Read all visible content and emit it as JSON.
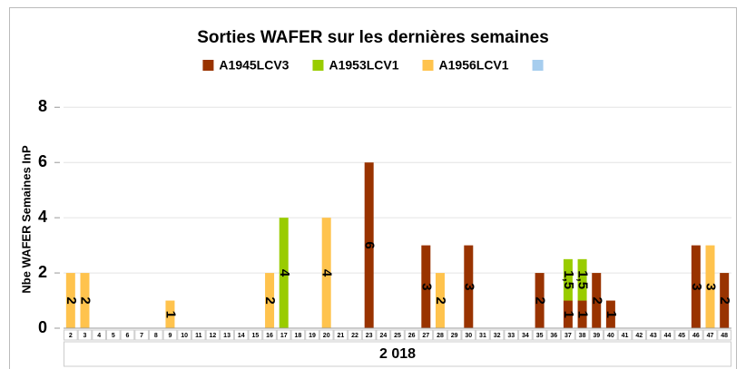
{
  "chart_data": {
    "type": "bar",
    "stacked": true,
    "title": "Sorties WAFER sur les dernières semaines",
    "ylabel": "Nbe WAFER Semaines InP",
    "category_group": "2 018",
    "categories": [
      "2",
      "3",
      "4",
      "5",
      "6",
      "7",
      "8",
      "9",
      "10",
      "11",
      "12",
      "13",
      "14",
      "15",
      "16",
      "17",
      "18",
      "19",
      "20",
      "21",
      "22",
      "23",
      "24",
      "25",
      "26",
      "27",
      "28",
      "29",
      "30",
      "31",
      "32",
      "33",
      "34",
      "35",
      "36",
      "37",
      "38",
      "39",
      "40",
      "41",
      "42",
      "43",
      "44",
      "45",
      "46",
      "47",
      "48"
    ],
    "ylim": [
      0,
      8.6
    ],
    "yticks": [
      0,
      2,
      4,
      6,
      8
    ],
    "grid": true,
    "legend": "top",
    "series": [
      {
        "name": "A1945LCV3",
        "color": "#993300",
        "values": [
          null,
          null,
          null,
          null,
          null,
          null,
          null,
          null,
          null,
          null,
          null,
          null,
          null,
          null,
          null,
          null,
          null,
          null,
          null,
          null,
          null,
          6,
          null,
          null,
          null,
          3,
          null,
          null,
          3,
          null,
          null,
          null,
          null,
          2,
          null,
          1,
          1,
          2,
          1,
          null,
          null,
          null,
          null,
          null,
          3,
          null,
          2
        ]
      },
      {
        "name": "A1953LCV1",
        "color": "#99cc00",
        "values": [
          null,
          null,
          null,
          null,
          null,
          null,
          null,
          null,
          null,
          null,
          null,
          null,
          null,
          null,
          null,
          4,
          null,
          null,
          null,
          null,
          null,
          null,
          null,
          null,
          null,
          null,
          null,
          null,
          null,
          null,
          null,
          null,
          null,
          null,
          null,
          1.5,
          1.5,
          null,
          null,
          null,
          null,
          null,
          null,
          null,
          null,
          null,
          null
        ],
        "value_labels": [
          null,
          null,
          null,
          null,
          null,
          null,
          null,
          null,
          null,
          null,
          null,
          null,
          null,
          null,
          null,
          "4",
          null,
          null,
          null,
          null,
          null,
          null,
          null,
          null,
          null,
          null,
          null,
          null,
          null,
          null,
          null,
          null,
          null,
          null,
          null,
          "1,5",
          "1,5",
          null,
          null,
          null,
          null,
          null,
          null,
          null,
          null,
          null,
          null
        ]
      },
      {
        "name": "A1956LCV1",
        "color": "#ffc34d",
        "values": [
          2,
          2,
          null,
          null,
          null,
          null,
          null,
          1,
          null,
          null,
          null,
          null,
          null,
          null,
          2,
          null,
          null,
          null,
          4,
          null,
          null,
          null,
          null,
          null,
          null,
          null,
          2,
          null,
          null,
          null,
          null,
          null,
          null,
          null,
          null,
          null,
          null,
          null,
          null,
          null,
          null,
          null,
          null,
          null,
          null,
          3,
          null
        ]
      },
      {
        "color": "#a6cdee",
        "values": [
          null,
          null,
          null,
          null,
          null,
          null,
          null,
          null,
          null,
          null,
          null,
          null,
          null,
          null,
          null,
          null,
          null,
          null,
          null,
          null,
          null,
          null,
          null,
          null,
          null,
          null,
          null,
          null,
          null,
          null,
          null,
          null,
          null,
          null,
          null,
          null,
          null,
          null,
          null,
          null,
          null,
          null,
          null,
          null,
          null,
          null,
          null
        ]
      }
    ]
  }
}
